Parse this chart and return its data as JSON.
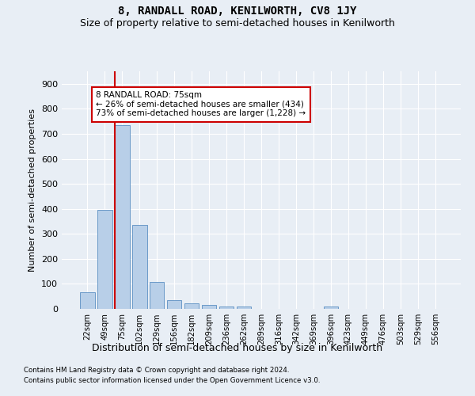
{
  "title": "8, RANDALL ROAD, KENILWORTH, CV8 1JY",
  "subtitle": "Size of property relative to semi-detached houses in Kenilworth",
  "xlabel": "Distribution of semi-detached houses by size in Kenilworth",
  "ylabel": "Number of semi-detached properties",
  "footnote1": "Contains HM Land Registry data © Crown copyright and database right 2024.",
  "footnote2": "Contains public sector information licensed under the Open Government Licence v3.0.",
  "categories": [
    "22sqm",
    "49sqm",
    "75sqm",
    "102sqm",
    "129sqm",
    "156sqm",
    "182sqm",
    "209sqm",
    "236sqm",
    "262sqm",
    "289sqm",
    "316sqm",
    "342sqm",
    "369sqm",
    "396sqm",
    "423sqm",
    "449sqm",
    "476sqm",
    "503sqm",
    "529sqm",
    "556sqm"
  ],
  "values": [
    65,
    395,
    735,
    335,
    107,
    35,
    22,
    15,
    10,
    10,
    0,
    0,
    0,
    0,
    10,
    0,
    0,
    0,
    0,
    0,
    0
  ],
  "bar_color": "#b8cfe8",
  "bar_edge_color": "#5a8fc2",
  "highlight_index": 2,
  "highlight_line_color": "#cc0000",
  "ylim": [
    0,
    950
  ],
  "yticks": [
    0,
    100,
    200,
    300,
    400,
    500,
    600,
    700,
    800,
    900
  ],
  "annotation_text": "8 RANDALL ROAD: 75sqm\n← 26% of semi-detached houses are smaller (434)\n73% of semi-detached houses are larger (1,228) →",
  "annotation_box_color": "#ffffff",
  "annotation_box_edge_color": "#cc0000",
  "bg_color": "#e8eef5",
  "grid_color": "#ffffff",
  "title_fontsize": 10,
  "subtitle_fontsize": 9
}
